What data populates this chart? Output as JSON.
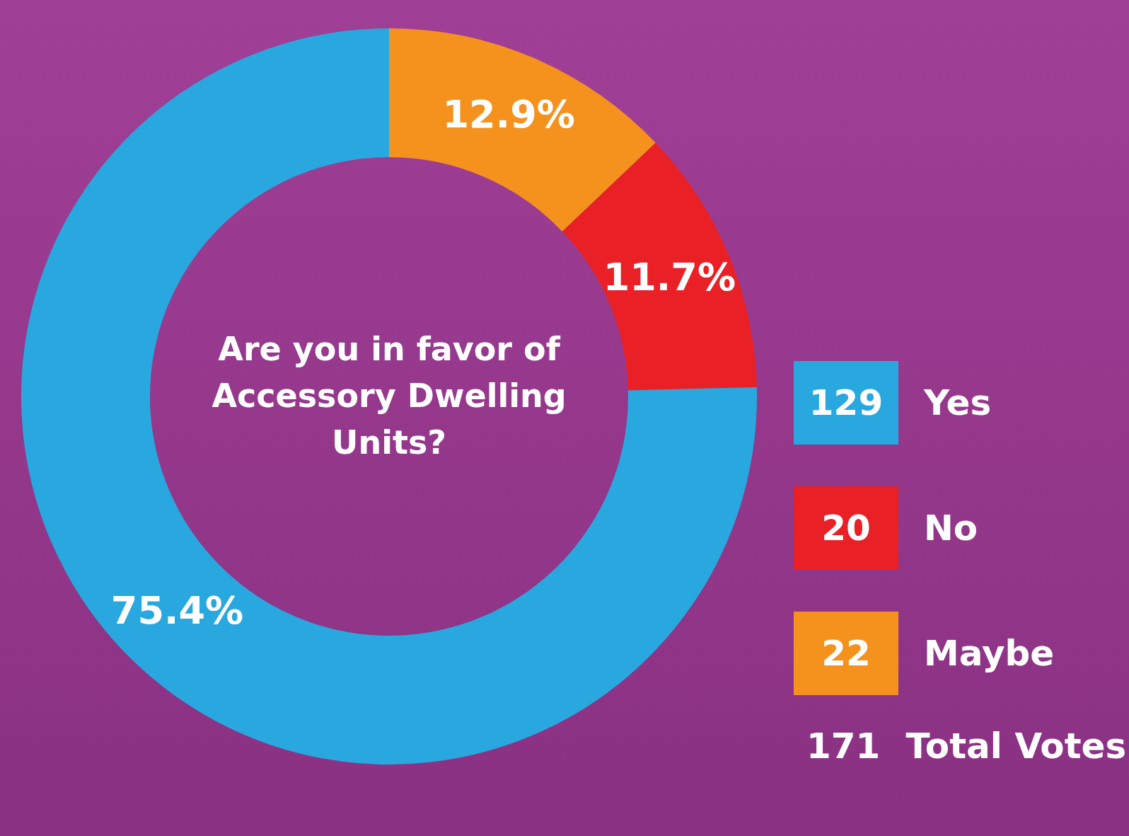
{
  "chart_data": {
    "type": "donut",
    "title": "Are you in favor of Accessory Dwelling Units?",
    "categories": [
      "Yes",
      "No",
      "Maybe"
    ],
    "values": [
      75.4,
      11.7,
      12.9
    ],
    "colors": [
      "#29a8e0",
      "#e92127",
      "#f5921e"
    ],
    "value_labels": [
      "75.4%",
      "11.7%",
      "12.9%"
    ],
    "legend": "right",
    "annotations": [
      "129",
      "20",
      "22",
      "171",
      "Total Votes"
    ]
  }
}
